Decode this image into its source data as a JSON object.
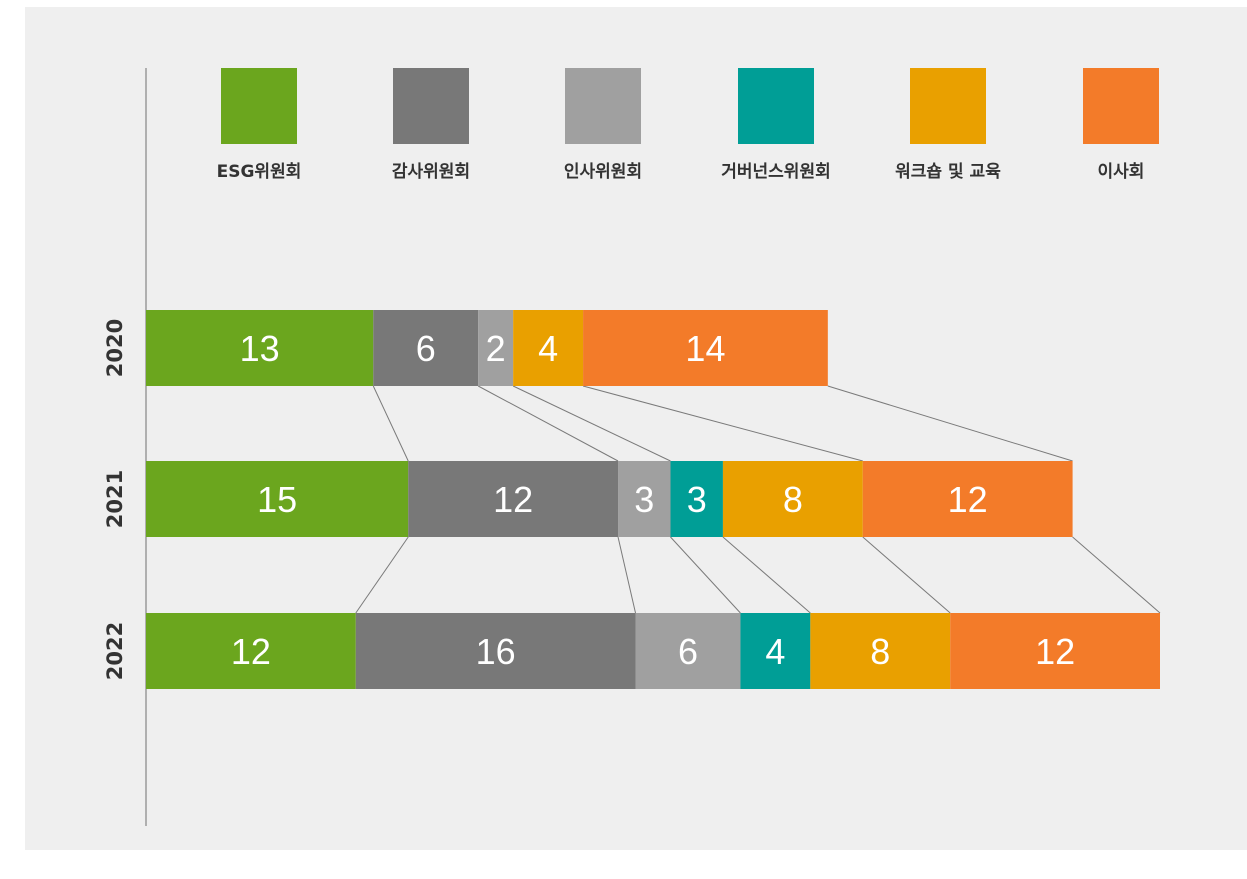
{
  "chart_data": {
    "type": "bar",
    "orientation": "horizontal",
    "stacked": true,
    "title": "",
    "xlabel": "",
    "ylabel": "",
    "grid": false,
    "legend_placement": "top",
    "categories": [
      "2020",
      "2021",
      "2022"
    ],
    "series": [
      {
        "name": "ESG위원회",
        "color": "#6ba61e",
        "values": [
          13,
          15,
          12
        ]
      },
      {
        "name": "감사위원회",
        "color": "#787878",
        "values": [
          6,
          12,
          16
        ]
      },
      {
        "name": "인사위원회",
        "color": "#a0a0a0",
        "values": [
          2,
          3,
          6
        ]
      },
      {
        "name": "거버넌스위원회",
        "color": "#009e96",
        "values": [
          0,
          3,
          4
        ]
      },
      {
        "name": "워크숍 및 교육",
        "color": "#e9a000",
        "values": [
          4,
          8,
          8
        ]
      },
      {
        "name": "이사회",
        "color": "#f37b29",
        "values": [
          14,
          12,
          12
        ]
      }
    ]
  }
}
